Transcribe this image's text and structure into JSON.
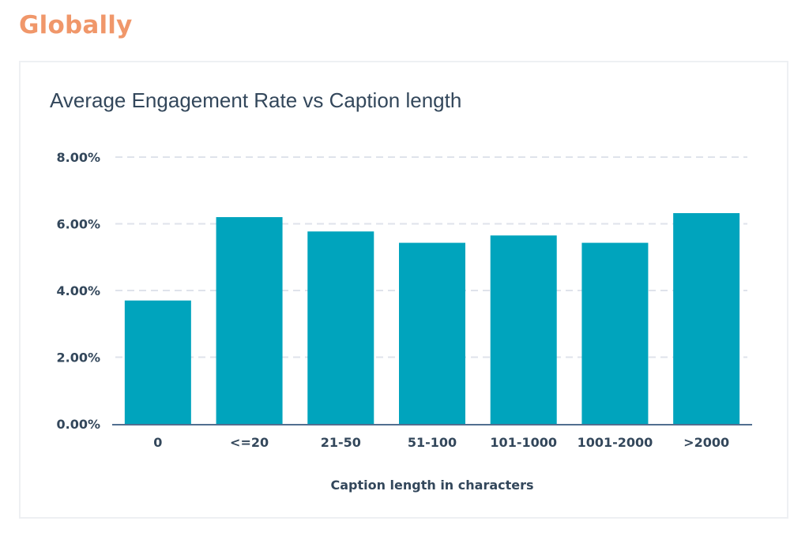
{
  "heading": "Globally",
  "colors": {
    "heading": "#f0976a",
    "bar": "#00a4bd",
    "text": "#33475b",
    "grid": "#dfe3eb",
    "axis": "#516f90"
  },
  "chart_data": {
    "type": "bar",
    "title": "Average Engagement Rate vs Caption length",
    "xlabel": "Caption length in characters",
    "ylabel": "",
    "categories": [
      "0",
      "<=20",
      "21-50",
      "51-100",
      "101-1000",
      "1001-2000",
      ">2000"
    ],
    "values": [
      3.7,
      6.2,
      5.77,
      5.43,
      5.65,
      5.43,
      6.32
    ],
    "ylim": [
      0,
      8
    ],
    "yticks": [
      "0.00%",
      "2.00%",
      "4.00%",
      "6.00%",
      "8.00%"
    ],
    "ytick_values": [
      0,
      2,
      4,
      6,
      8
    ],
    "grid": true,
    "legend": "none"
  }
}
